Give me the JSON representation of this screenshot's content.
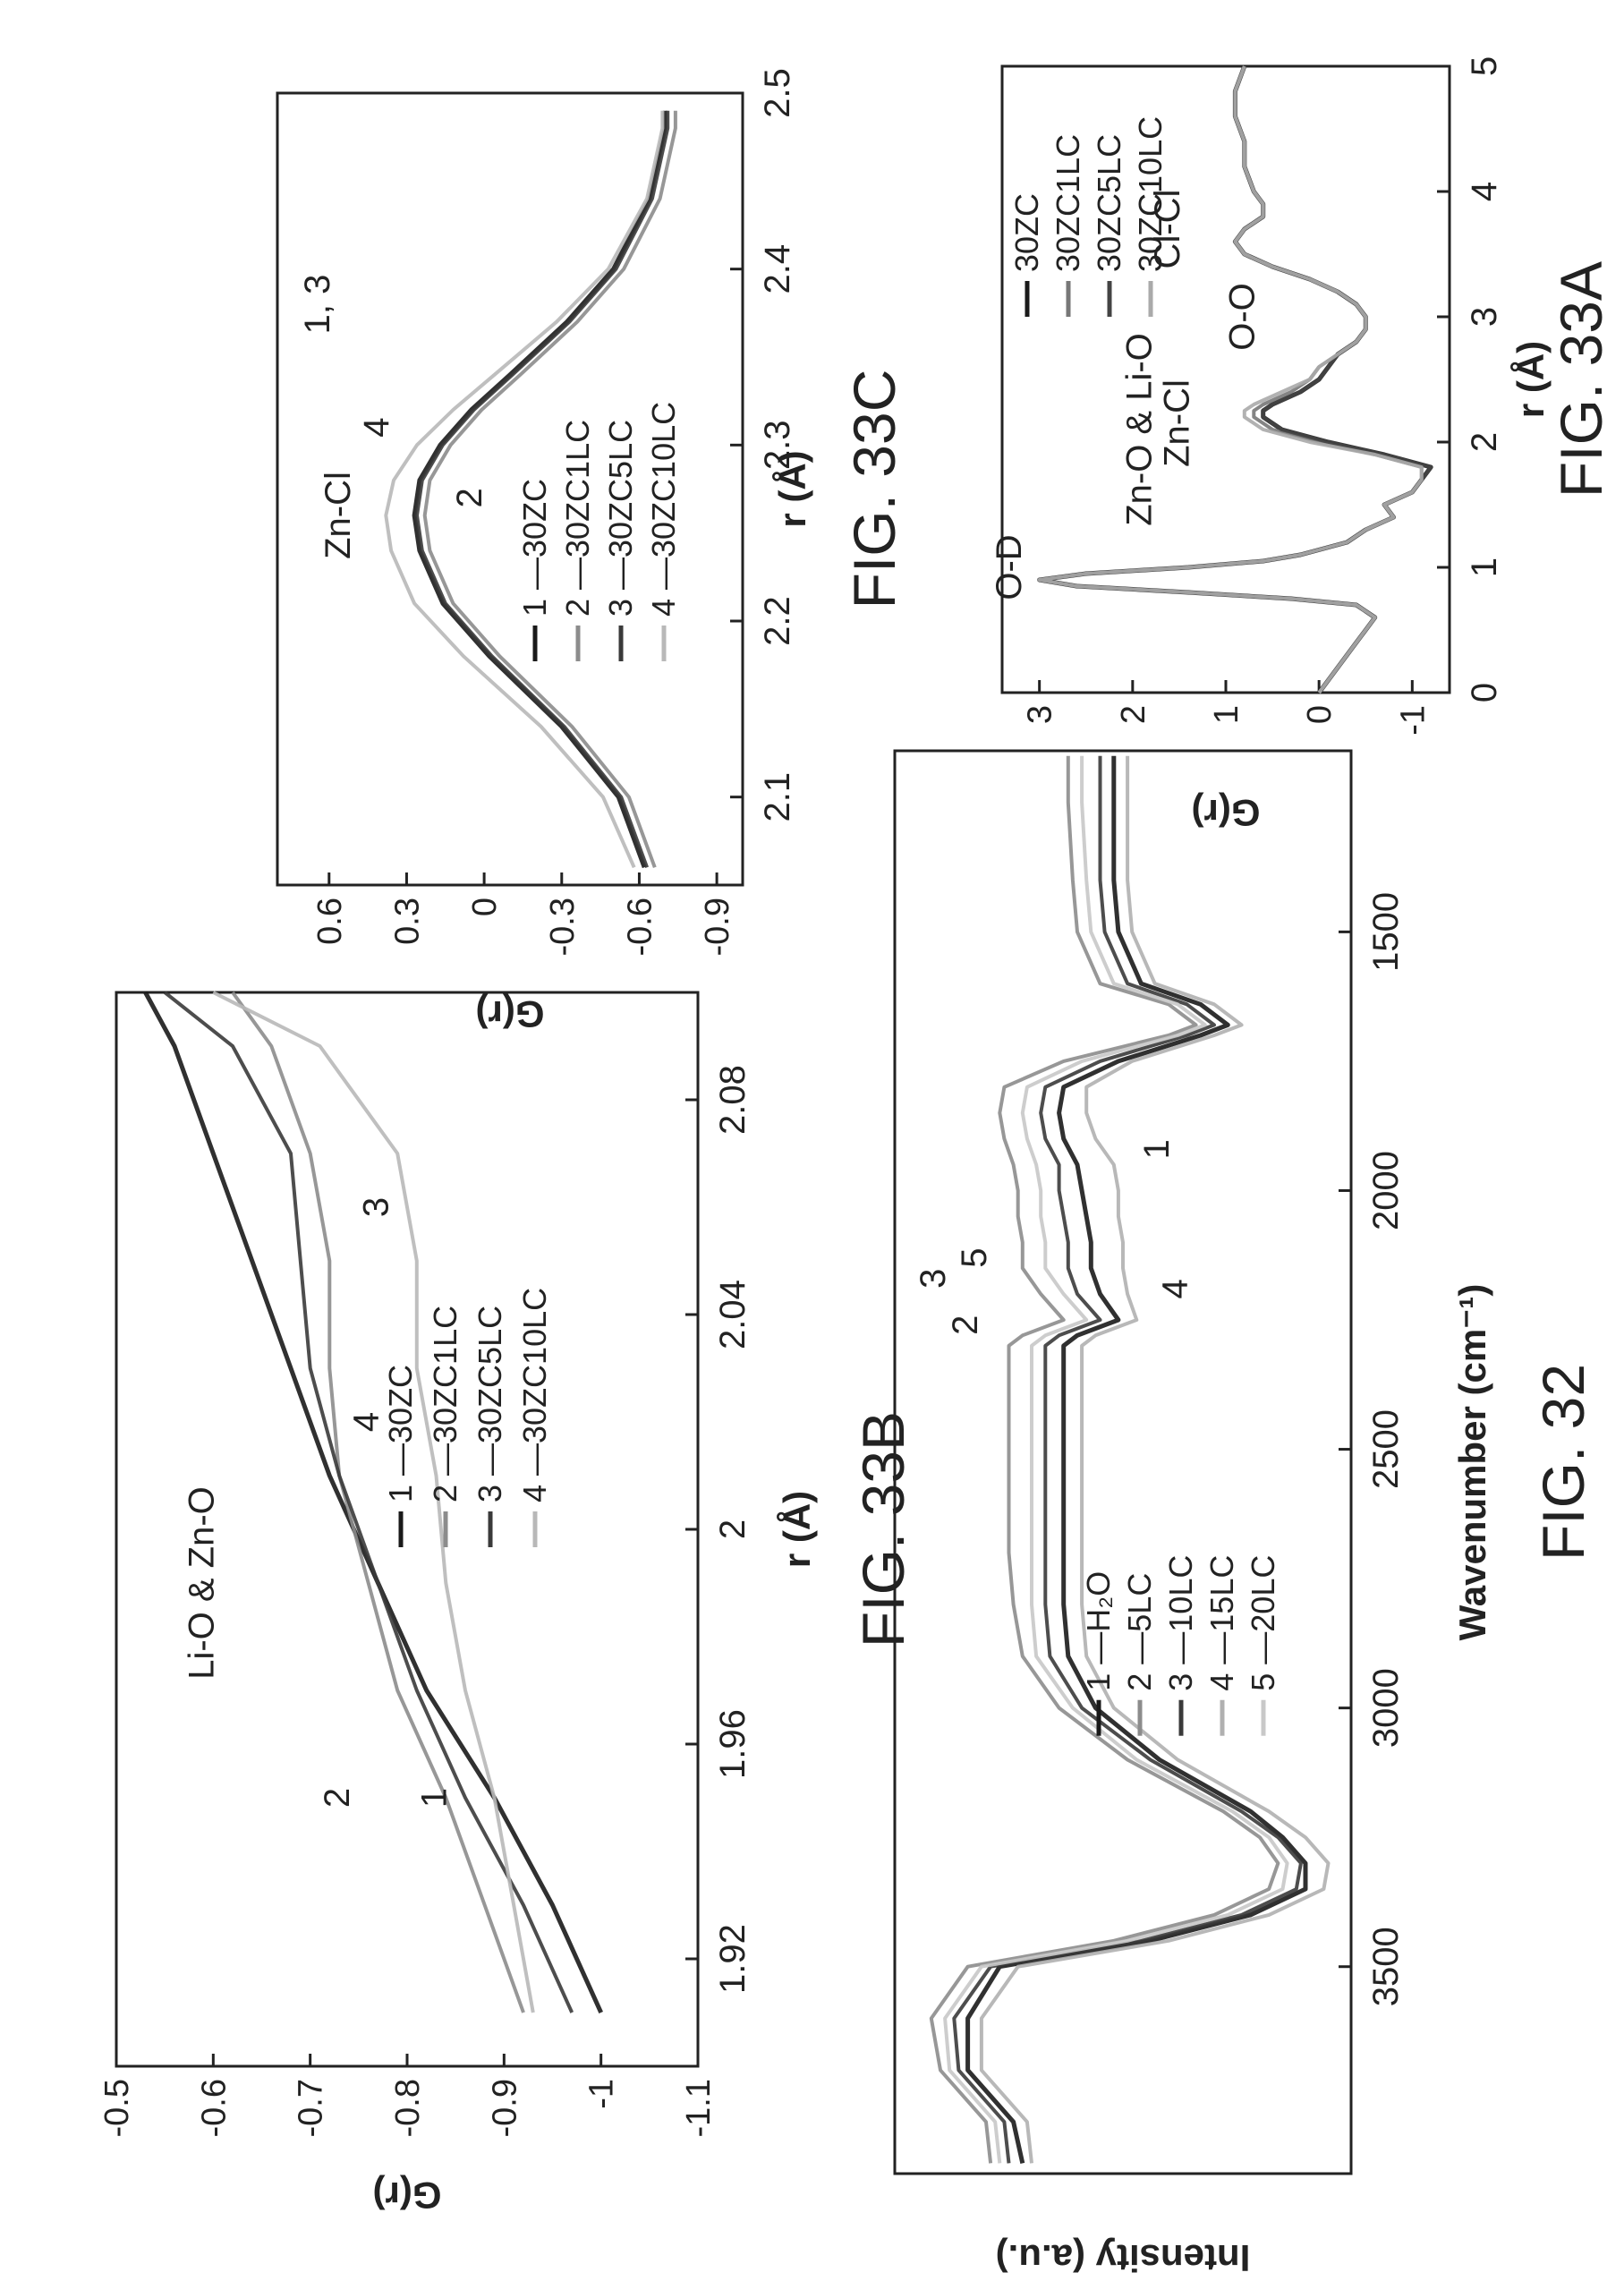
{
  "chart_data": [
    {
      "figure": "FIG. 32",
      "type": "line",
      "xlabel": "Wavenumber (cm⁻¹)",
      "ylabel": "Intensity (a.u.)",
      "xlim": [
        3900,
        1150
      ],
      "x_reversed": true,
      "xticks": [
        3500,
        3000,
        2500,
        2000,
        1500
      ],
      "yticks_shown": false,
      "legend_position": "center",
      "legend": [
        "1 —H₂O",
        "2 —5LC",
        "3 —10LC",
        "4 —15LC",
        "5 —20LC"
      ],
      "annotations": [
        "3",
        "5",
        "2",
        "1",
        "4"
      ],
      "x": [
        3880,
        3800,
        3700,
        3600,
        3500,
        3450,
        3400,
        3350,
        3300,
        3250,
        3200,
        3100,
        3000,
        2900,
        2800,
        2700,
        2600,
        2500,
        2400,
        2300,
        2280,
        2250,
        2200,
        2150,
        2100,
        2050,
        2000,
        1950,
        1900,
        1850,
        1800,
        1750,
        1700,
        1680,
        1640,
        1600,
        1500,
        1400,
        1250,
        1160
      ],
      "series": [
        {
          "name": "1",
          "color": "#1a1a1a",
          "values": [
            7.2,
            7.4,
            8.4,
            8.4,
            7.7,
            4.4,
            2.2,
            1.0,
            1.0,
            1.5,
            2.2,
            4.2,
            5.6,
            6.2,
            6.3,
            6.3,
            6.3,
            6.3,
            6.3,
            6.3,
            6.0,
            5.1,
            5.5,
            5.7,
            5.7,
            5.8,
            5.9,
            6.0,
            6.3,
            6.4,
            6.3,
            5.1,
            3.3,
            2.7,
            3.3,
            4.6,
            5.1,
            5.2,
            5.2,
            5.2
          ]
        },
        {
          "name": "2",
          "color": "#8c8c8c",
          "values": [
            7.9,
            8.0,
            9.0,
            9.2,
            8.4,
            5.2,
            3.0,
            1.8,
            1.6,
            2.0,
            2.8,
            4.9,
            6.4,
            7.2,
            7.4,
            7.5,
            7.5,
            7.5,
            7.5,
            7.5,
            7.2,
            6.3,
            6.8,
            7.2,
            7.2,
            7.3,
            7.3,
            7.4,
            7.6,
            7.7,
            7.6,
            6.3,
            4.0,
            3.4,
            4.0,
            5.5,
            6.0,
            6.1,
            6.2,
            6.2
          ]
        },
        {
          "name": "3",
          "color": "#3a3a3a",
          "values": [
            7.5,
            7.6,
            8.6,
            8.7,
            7.9,
            4.6,
            2.4,
            1.2,
            1.1,
            1.6,
            2.4,
            4.4,
            5.9,
            6.6,
            6.7,
            6.7,
            6.7,
            6.7,
            6.7,
            6.7,
            6.4,
            5.5,
            6.0,
            6.2,
            6.2,
            6.3,
            6.4,
            6.4,
            6.7,
            6.8,
            6.7,
            5.5,
            3.6,
            3.0,
            3.6,
            4.9,
            5.4,
            5.5,
            5.5,
            5.5
          ]
        },
        {
          "name": "4",
          "color": "#b0b0b0",
          "values": [
            7.0,
            7.1,
            8.1,
            8.1,
            7.3,
            4.0,
            1.8,
            0.6,
            0.5,
            1.0,
            1.8,
            3.8,
            5.2,
            5.8,
            5.9,
            5.9,
            5.9,
            5.9,
            5.9,
            5.9,
            5.6,
            4.7,
            4.9,
            5.0,
            5.0,
            5.1,
            5.1,
            5.2,
            5.6,
            5.8,
            5.8,
            4.8,
            3.0,
            2.4,
            3.0,
            4.3,
            4.8,
            4.9,
            4.9,
            4.9
          ]
        },
        {
          "name": "5",
          "color": "#c8c8c8",
          "values": [
            7.7,
            7.8,
            8.8,
            8.9,
            8.1,
            4.9,
            2.7,
            1.5,
            1.4,
            1.8,
            2.6,
            4.7,
            6.1,
            6.9,
            7.0,
            7.0,
            7.0,
            7.0,
            7.0,
            7.0,
            6.7,
            5.8,
            6.3,
            6.7,
            6.7,
            6.8,
            6.8,
            6.9,
            7.1,
            7.2,
            7.1,
            5.9,
            3.8,
            3.2,
            3.8,
            5.2,
            5.7,
            5.8,
            5.9,
            5.9
          ]
        }
      ]
    },
    {
      "figure": "FIG. 33A",
      "type": "line",
      "xlabel": "r (Å)",
      "ylabel": "G(r)",
      "xlim": [
        0,
        5
      ],
      "ylim": [
        -1.4,
        3.4
      ],
      "xticks": [
        0,
        1,
        2,
        3,
        4,
        5
      ],
      "yticks": [
        3,
        2,
        1,
        0,
        -1
      ],
      "legend": [
        "30ZC",
        "30ZC1LC",
        "30ZC5LC",
        "30ZC10LC"
      ],
      "annotations": [
        "O-D",
        "Zn-O & Li-O",
        "Zn-Cl",
        "O-O",
        "Cl-Cl"
      ],
      "x": [
        0.0,
        0.1,
        0.2,
        0.3,
        0.4,
        0.5,
        0.6,
        0.7,
        0.75,
        0.8,
        0.85,
        0.9,
        0.95,
        1.0,
        1.05,
        1.1,
        1.2,
        1.3,
        1.4,
        1.5,
        1.6,
        1.7,
        1.8,
        1.9,
        2.0,
        2.1,
        2.2,
        2.25,
        2.3,
        2.4,
        2.5,
        2.6,
        2.7,
        2.8,
        2.9,
        3.0,
        3.1,
        3.2,
        3.3,
        3.4,
        3.5,
        3.6,
        3.7,
        3.8,
        3.9,
        4.0,
        4.2,
        4.4,
        4.6,
        4.8,
        5.0
      ],
      "series": [
        {
          "name": "30ZC",
          "color": "#1a1a1a",
          "values": [
            0.0,
            -0.1,
            -0.2,
            -0.3,
            -0.4,
            -0.5,
            -0.6,
            -0.4,
            0.3,
            1.4,
            2.6,
            3.0,
            2.5,
            1.4,
            0.6,
            0.2,
            -0.3,
            -0.5,
            -0.8,
            -0.7,
            -1.0,
            -1.1,
            -1.2,
            -0.7,
            -0.1,
            0.4,
            0.6,
            0.6,
            0.5,
            0.2,
            0.0,
            -0.1,
            -0.2,
            -0.4,
            -0.5,
            -0.5,
            -0.4,
            -0.2,
            0.1,
            0.5,
            0.8,
            0.9,
            0.8,
            0.6,
            0.6,
            0.7,
            0.8,
            0.8,
            0.9,
            0.9,
            0.8
          ]
        },
        {
          "name": "30ZC1LC",
          "color": "#777777",
          "values": [
            0.0,
            -0.1,
            -0.2,
            -0.3,
            -0.4,
            -0.5,
            -0.6,
            -0.4,
            0.3,
            1.4,
            2.6,
            3.0,
            2.5,
            1.4,
            0.6,
            0.2,
            -0.3,
            -0.5,
            -0.8,
            -0.7,
            -1.0,
            -1.1,
            -1.1,
            -0.6,
            0.0,
            0.5,
            0.7,
            0.7,
            0.6,
            0.3,
            0.1,
            0.0,
            -0.2,
            -0.4,
            -0.5,
            -0.5,
            -0.4,
            -0.2,
            0.1,
            0.5,
            0.8,
            0.9,
            0.8,
            0.6,
            0.6,
            0.7,
            0.8,
            0.8,
            0.9,
            0.9,
            0.8
          ]
        },
        {
          "name": "30ZC5LC",
          "color": "#444444",
          "values": [
            0.0,
            -0.1,
            -0.2,
            -0.3,
            -0.4,
            -0.5,
            -0.6,
            -0.4,
            0.3,
            1.4,
            2.6,
            3.0,
            2.5,
            1.4,
            0.6,
            0.2,
            -0.3,
            -0.5,
            -0.8,
            -0.7,
            -1.0,
            -1.1,
            -1.2,
            -0.7,
            -0.1,
            0.4,
            0.6,
            0.6,
            0.5,
            0.2,
            0.0,
            -0.1,
            -0.2,
            -0.4,
            -0.5,
            -0.5,
            -0.4,
            -0.2,
            0.1,
            0.5,
            0.8,
            0.9,
            0.8,
            0.6,
            0.6,
            0.7,
            0.8,
            0.8,
            0.9,
            0.9,
            0.8
          ]
        },
        {
          "name": "30ZC10LC",
          "color": "#aaaaaa",
          "values": [
            0.0,
            -0.1,
            -0.2,
            -0.3,
            -0.4,
            -0.5,
            -0.6,
            -0.4,
            0.3,
            1.4,
            2.6,
            3.0,
            2.5,
            1.4,
            0.6,
            0.2,
            -0.3,
            -0.5,
            -0.8,
            -0.7,
            -1.0,
            -1.1,
            -1.1,
            -0.6,
            0.1,
            0.6,
            0.8,
            0.8,
            0.7,
            0.4,
            0.1,
            0.0,
            -0.2,
            -0.4,
            -0.5,
            -0.5,
            -0.4,
            -0.2,
            0.1,
            0.5,
            0.8,
            0.9,
            0.8,
            0.6,
            0.6,
            0.7,
            0.8,
            0.8,
            0.9,
            0.9,
            0.8
          ]
        }
      ]
    },
    {
      "figure": "FIG. 33B",
      "type": "line",
      "xlabel": "r (Å)",
      "ylabel": "G(r)",
      "xlim": [
        1.9,
        2.1
      ],
      "ylim": [
        -1.1,
        -0.5
      ],
      "xticks": [
        1.92,
        1.96,
        2.0,
        2.04,
        2.08
      ],
      "yticks": [
        -0.5,
        -0.6,
        -0.7,
        -0.8,
        -0.9,
        -1.0,
        -1.1
      ],
      "legend": [
        "1 —30ZC",
        "2 —30ZC1LC",
        "3 —30ZC5LC",
        "4 —30ZC10LC"
      ],
      "annotations": [
        "Li-O & Zn-O",
        "2",
        "1",
        "4",
        "3"
      ],
      "x": [
        1.91,
        1.93,
        1.95,
        1.97,
        1.99,
        2.01,
        2.03,
        2.05,
        2.07,
        2.09,
        2.1
      ],
      "series": [
        {
          "name": "1",
          "color": "#1a1a1a",
          "values": [
            -1.0,
            -0.95,
            -0.89,
            -0.82,
            -0.77,
            -0.72,
            -0.68,
            -0.64,
            -0.6,
            -0.56,
            -0.53
          ]
        },
        {
          "name": "2",
          "color": "#8c8c8c",
          "values": [
            -0.92,
            -0.88,
            -0.84,
            -0.79,
            -0.76,
            -0.73,
            -0.72,
            -0.72,
            -0.7,
            -0.66,
            -0.62
          ]
        },
        {
          "name": "3",
          "color": "#3a3a3a",
          "values": [
            -0.97,
            -0.92,
            -0.86,
            -0.81,
            -0.77,
            -0.73,
            -0.7,
            -0.69,
            -0.68,
            -0.62,
            -0.55
          ]
        },
        {
          "name": "4",
          "color": "#b8b8b8",
          "values": [
            -0.93,
            -0.91,
            -0.89,
            -0.86,
            -0.84,
            -0.83,
            -0.81,
            -0.81,
            -0.79,
            -0.71,
            -0.6
          ]
        }
      ]
    },
    {
      "figure": "FIG. 33C",
      "type": "line",
      "xlabel": "r (Å)",
      "ylabel": "G(r)",
      "xlim": [
        2.05,
        2.5
      ],
      "ylim": [
        -1.0,
        0.8
      ],
      "xticks": [
        2.1,
        2.2,
        2.3,
        2.4,
        2.5
      ],
      "yticks": [
        0.6,
        0.3,
        0.0,
        -0.3,
        -0.6,
        -0.9
      ],
      "legend": [
        "1 —30ZC",
        "2 —30ZC1LC",
        "3 —30ZC5LC",
        "4 —30ZC10LC"
      ],
      "annotations": [
        "Zn-Cl",
        "1, 3",
        "4",
        "2"
      ],
      "x": [
        2.06,
        2.1,
        2.14,
        2.18,
        2.21,
        2.24,
        2.26,
        2.28,
        2.3,
        2.32,
        2.34,
        2.37,
        2.4,
        2.44,
        2.48,
        2.49
      ],
      "series": [
        {
          "name": "1",
          "color": "#1a1a1a",
          "values": [
            -0.62,
            -0.52,
            -0.3,
            -0.02,
            0.16,
            0.25,
            0.27,
            0.25,
            0.17,
            0.05,
            -0.1,
            -0.32,
            -0.5,
            -0.64,
            -0.7,
            -0.7
          ]
        },
        {
          "name": "2",
          "color": "#8c8c8c",
          "values": [
            -0.66,
            -0.56,
            -0.34,
            -0.06,
            0.12,
            0.21,
            0.23,
            0.21,
            0.13,
            0.01,
            -0.14,
            -0.36,
            -0.54,
            -0.68,
            -0.74,
            -0.74
          ]
        },
        {
          "name": "3",
          "color": "#3a3a3a",
          "values": [
            -0.63,
            -0.53,
            -0.31,
            -0.03,
            0.15,
            0.24,
            0.26,
            0.24,
            0.16,
            0.04,
            -0.11,
            -0.33,
            -0.51,
            -0.65,
            -0.71,
            -0.71
          ]
        },
        {
          "name": "4",
          "color": "#b8b8b8",
          "values": [
            -0.58,
            -0.46,
            -0.22,
            0.08,
            0.27,
            0.36,
            0.38,
            0.35,
            0.26,
            0.12,
            -0.04,
            -0.28,
            -0.48,
            -0.63,
            -0.69,
            -0.69
          ]
        }
      ]
    }
  ],
  "figure_labels": {
    "fig32": "FIG. 32",
    "fig33a": "FIG. 33A",
    "fig33b": "FIG. 33B",
    "fig33c": "FIG. 33C"
  }
}
